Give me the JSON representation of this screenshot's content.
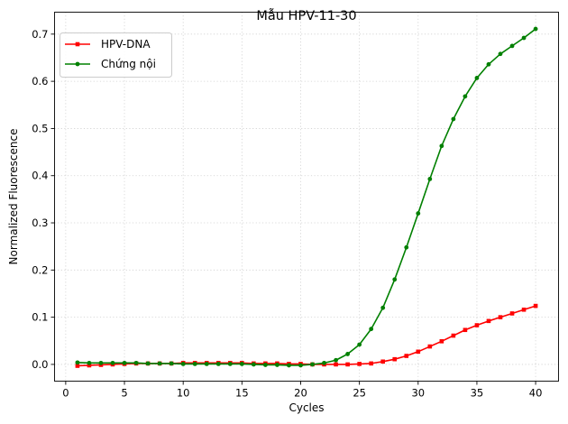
{
  "chart_data": {
    "type": "line",
    "title": "Mẫu HPV-11-30",
    "xlabel": "Cycles",
    "ylabel": "Normalized Fluorescence",
    "xlim": [
      -0.95,
      41.95
    ],
    "ylim": [
      -0.0355,
      0.7465
    ],
    "xticks": [
      0,
      5,
      10,
      15,
      20,
      25,
      30,
      35,
      40
    ],
    "yticks": [
      0.0,
      0.1,
      0.2,
      0.3,
      0.4,
      0.5,
      0.6,
      0.7
    ],
    "xtick_labels": [
      "0",
      "5",
      "10",
      "15",
      "20",
      "25",
      "30",
      "35",
      "40"
    ],
    "ytick_labels": [
      "0.0",
      "0.1",
      "0.2",
      "0.3",
      "0.4",
      "0.5",
      "0.6",
      "0.7"
    ],
    "grid": true,
    "legend": "top-left",
    "x": [
      1,
      2,
      3,
      4,
      5,
      6,
      7,
      8,
      9,
      10,
      11,
      12,
      13,
      14,
      15,
      16,
      17,
      18,
      19,
      20,
      21,
      22,
      23,
      24,
      25,
      26,
      27,
      28,
      29,
      30,
      31,
      32,
      33,
      34,
      35,
      36,
      37,
      38,
      39,
      40
    ],
    "series": [
      {
        "name": "HPV-DNA",
        "color": "#ff0000",
        "marker": "square",
        "values": [
          -0.003,
          -0.002,
          -0.001,
          0.0,
          0.001,
          0.002,
          0.002,
          0.002,
          0.002,
          0.003,
          0.003,
          0.003,
          0.003,
          0.003,
          0.003,
          0.002,
          0.002,
          0.002,
          0.001,
          0.001,
          0.0,
          0.0,
          0.0,
          0.0,
          0.001,
          0.002,
          0.006,
          0.011,
          0.018,
          0.027,
          0.038,
          0.049,
          0.061,
          0.073,
          0.083,
          0.092,
          0.1,
          0.108,
          0.116,
          0.124
        ]
      },
      {
        "name": "Chứng nội",
        "color": "#008000",
        "marker": "circle",
        "values": [
          0.004,
          0.003,
          0.003,
          0.003,
          0.003,
          0.003,
          0.002,
          0.002,
          0.002,
          0.001,
          0.001,
          0.001,
          0.001,
          0.001,
          0.001,
          0.0,
          -0.001,
          -0.001,
          -0.002,
          -0.002,
          0.0,
          0.003,
          0.009,
          0.022,
          0.042,
          0.075,
          0.12,
          0.18,
          0.248,
          0.32,
          0.393,
          0.463,
          0.52,
          0.568,
          0.607,
          0.636,
          0.658,
          0.675,
          0.692,
          0.711
        ]
      }
    ]
  }
}
